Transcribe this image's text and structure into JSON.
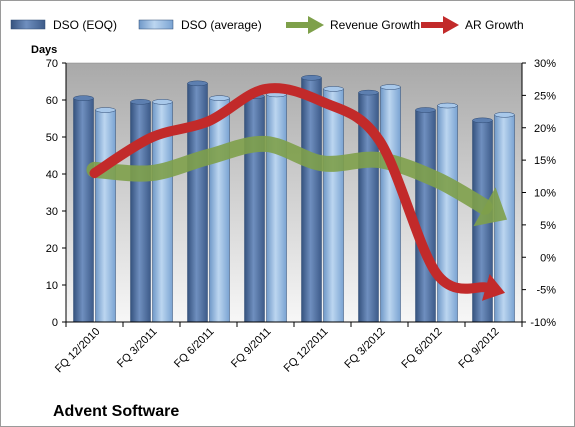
{
  "chart_data": {
    "type": "bar",
    "title": "Advent Software",
    "ylabel": "Days",
    "y2label": "",
    "categories": [
      "FQ 12/2010",
      "FQ 3/2011",
      "FQ 6/2011",
      "FQ 9/2011",
      "FQ 12/2011",
      "FQ 3/2012",
      "FQ 6/2012",
      "FQ 9/2012"
    ],
    "ylim": [
      0,
      70
    ],
    "yticks": [
      "0",
      "10",
      "20",
      "30",
      "40",
      "50",
      "60",
      "70"
    ],
    "y2lim": [
      -10,
      30
    ],
    "y2ticks": [
      "-10%",
      "-5%",
      "0%",
      "5%",
      "10%",
      "15%",
      "20%",
      "25%",
      "30%"
    ],
    "series": [
      {
        "name": "DSO (EOQ)",
        "kind": "bar",
        "axis": "left",
        "color": "#4a6b9c",
        "values": [
          60.5,
          59.5,
          64.5,
          61,
          66,
          62,
          57.3,
          54.5
        ]
      },
      {
        "name": "DSO (average)",
        "kind": "bar",
        "axis": "left",
        "color": "#92b6dc",
        "values": [
          57.3,
          59.5,
          60.5,
          61.5,
          63,
          63.5,
          58.5,
          56
        ]
      },
      {
        "name": "Revenue Growth",
        "kind": "arrow",
        "axis": "right",
        "color": "#7ea04a",
        "values": [
          13.5,
          13,
          15.5,
          17.5,
          14.5,
          15,
          12,
          7
        ]
      },
      {
        "name": "AR Growth",
        "kind": "arrow",
        "axis": "right",
        "color": "#c22a2a",
        "values": [
          13,
          18.5,
          21,
          26,
          24,
          18,
          -2.5,
          -5
        ]
      }
    ],
    "grid": false,
    "legend": "top"
  }
}
